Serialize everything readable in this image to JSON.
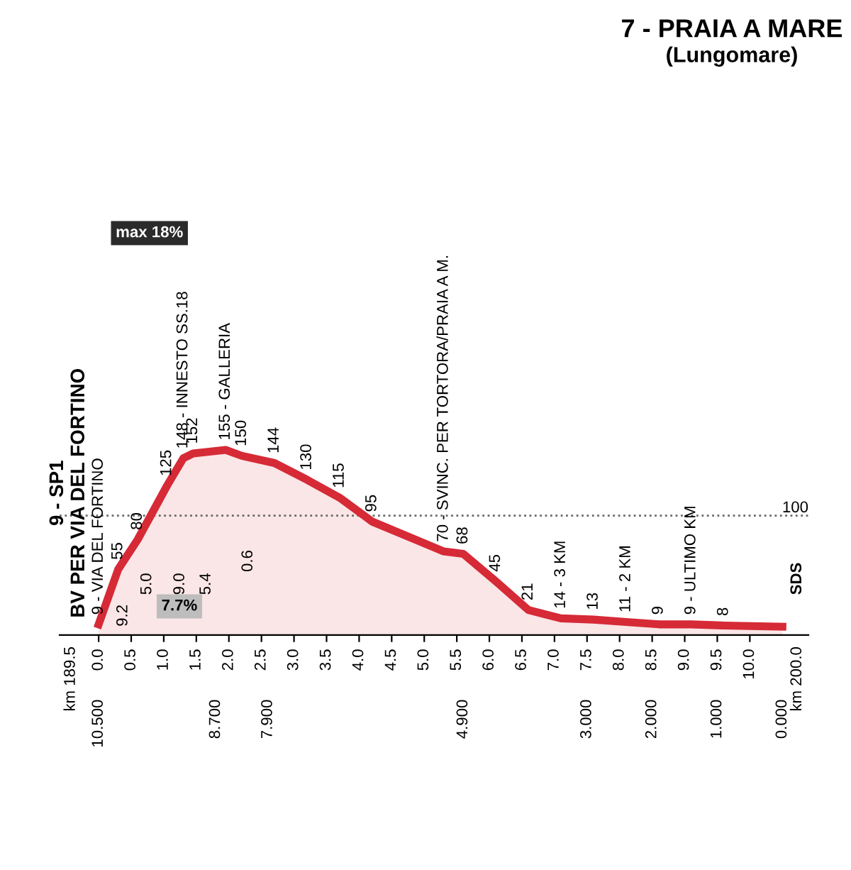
{
  "chart_data": {
    "type": "area",
    "title": "7 - PRAIA A MARE",
    "subtitle": "(Lungomare)",
    "x": [
      0.0,
      0.3,
      0.6,
      1.05,
      1.3,
      1.45,
      1.95,
      2.2,
      2.7,
      3.2,
      3.7,
      4.2,
      5.3,
      5.6,
      6.1,
      6.6,
      7.1,
      7.6,
      8.1,
      8.6,
      9.1,
      9.6,
      10.5
    ],
    "series": [
      {
        "color": "#d62a36",
        "values": [
          9,
          55,
          80,
          125,
          148,
          152,
          155,
          150,
          144,
          130,
          115,
          95,
          70,
          68,
          45,
          21,
          14,
          13,
          11,
          9,
          9,
          8,
          7
        ],
        "value_labels": [
          "9 - VIA DEL FORTINO",
          "55",
          "80",
          "125",
          "148 - INNESTO SS.18",
          "152",
          "155 - GALLERIA",
          "150",
          "144",
          "130",
          "115",
          "95",
          "70 - SVINC. PER TORTORA/PRAIA A M.",
          "68",
          "45",
          "21",
          "14 - 3 KM",
          "13",
          "11 - 2 KM",
          "9",
          "9 - ULTIMO KM",
          "8",
          null
        ]
      }
    ],
    "xlim": [
      -0.6,
      10.9
    ],
    "tick_labels": "x",
    "xticks": [
      {
        "value": 0,
        "label": "0.0"
      },
      0.5,
      {
        "value": 1,
        "label": "1.0"
      },
      1.5,
      {
        "value": 2,
        "label": "2.0"
      },
      2.5,
      {
        "value": 3,
        "label": "3.0"
      },
      3.5,
      {
        "value": 4,
        "label": "4.0"
      },
      4.5,
      {
        "value": 5,
        "label": "5.0"
      },
      5.5,
      {
        "value": 6,
        "label": "6.0"
      },
      6.5,
      {
        "value": 7,
        "label": "7.0"
      },
      7.5,
      {
        "value": 8,
        "label": "8.0"
      },
      8.5,
      {
        "value": 9,
        "label": "9.0"
      },
      9.5,
      {
        "value": 10,
        "label": "10.0"
      }
    ],
    "x2lim": [
      11.1,
      -0.4
    ],
    "x2ticks": [
      {
        "value": 10.5,
        "label": "10.500"
      },
      {
        "value": 8.7,
        "label": "8.700"
      },
      {
        "value": 7.9,
        "label": "7.900"
      },
      {
        "value": 4.9,
        "label": "4.900"
      },
      {
        "value": 3.0,
        "label": "3.000"
      },
      {
        "value": 2.0,
        "label": "2.000"
      },
      {
        "value": 1.0,
        "label": "1.000"
      },
      {
        "value": 0.0,
        "label": "0.000"
      }
    ],
    "ref_lines": [
      {
        "axis": "y",
        "value": 100,
        "label": "100",
        "color": "#666666",
        "line_style": "dotted"
      }
    ],
    "annotations": [
      "9 - SP1\nBV PER VIA DEL FORTINO",
      "9.2",
      "5.0",
      "9.0",
      "5.4",
      "0.6",
      "SDS",
      "km 189.5",
      "km 200.0",
      "max 18%",
      "7.7%"
    ]
  }
}
